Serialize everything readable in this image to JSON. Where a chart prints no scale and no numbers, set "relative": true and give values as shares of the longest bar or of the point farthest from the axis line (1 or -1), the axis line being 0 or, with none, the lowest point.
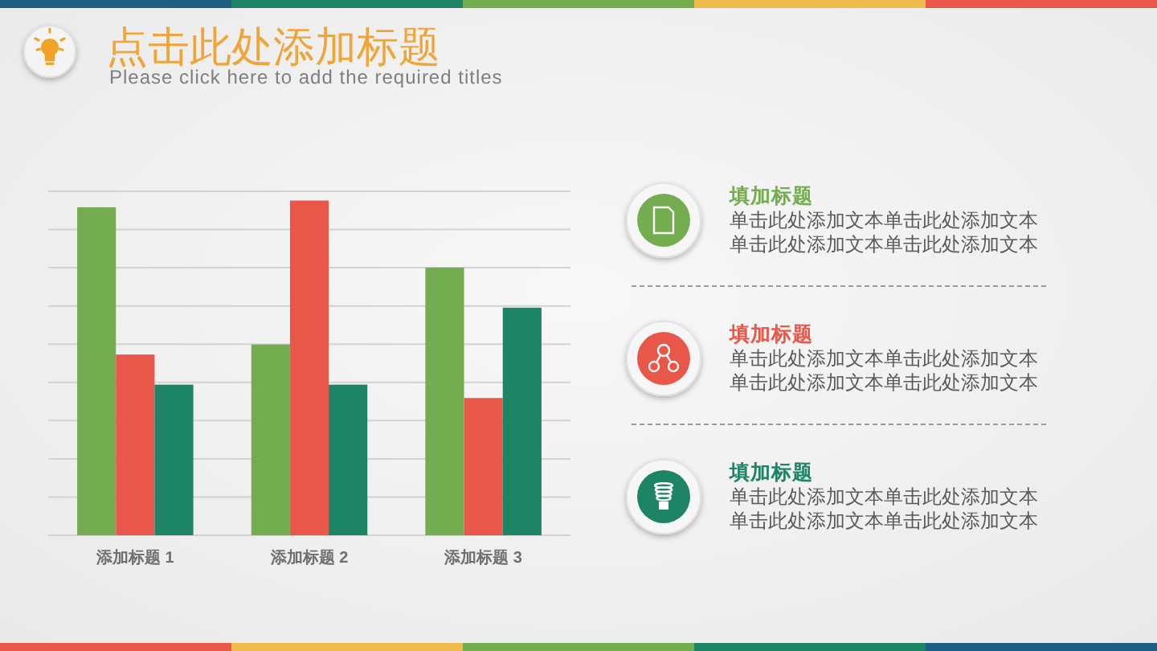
{
  "chart_data": [
    {
      "type": "bar",
      "title": "点击此处添加标题",
      "subtitle": "Please click here to add the required titles",
      "categories": [
        "添加标题 1",
        "添加标题 2",
        "添加标题 3"
      ],
      "relative": true,
      "grid": "y",
      "series": [
        {
          "color": "#74ad4f",
          "values": [
            0.98,
            0.57,
            0.8
          ]
        },
        {
          "color": "#e8574a",
          "values": [
            0.54,
            1,
            0.41
          ]
        },
        {
          "color": "#1e8466",
          "values": [
            0.45,
            0.45,
            0.68
          ]
        }
      ]
    },
    {
      "type": "other",
      "colors": [
        "#74ad4f",
        "#e8574a",
        "#1e8466"
      ],
      "annotations": [
        "填加标题",
        "单击此处添加文本单击此处添加文本",
        "单击此处添加文本单击此处添加文本",
        "填加标题",
        "单击此处添加文本单击此处添加文本",
        "单击此处添加文本单击此处添加文本",
        "填加标题",
        "单击此处添加文本单击此处添加文本",
        "单击此处添加文本单击此处添加文本"
      ]
    }
  ]
}
